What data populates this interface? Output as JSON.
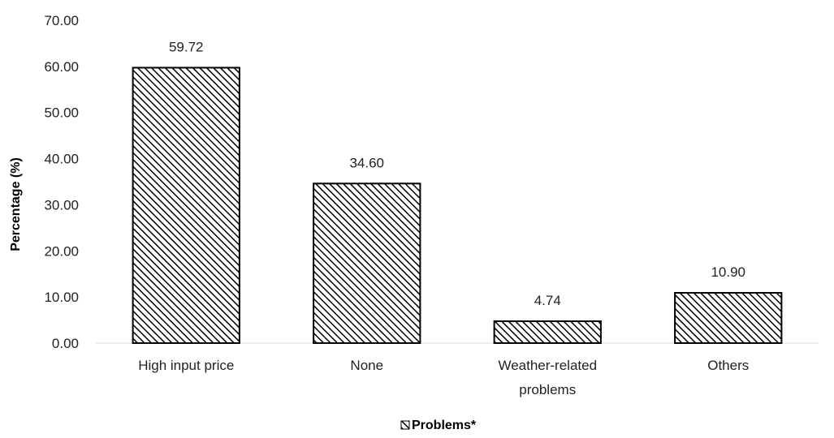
{
  "chart_data": {
    "type": "bar",
    "categories": [
      "High input price",
      "None",
      "Weather-related problems",
      "Others"
    ],
    "category_lines": [
      [
        "High input price"
      ],
      [
        "None"
      ],
      [
        "Weather-related",
        "problems"
      ],
      [
        "Others"
      ]
    ],
    "values": [
      59.72,
      34.6,
      4.74,
      10.9
    ],
    "value_labels": [
      "59.72",
      "34.60",
      "4.74",
      "10.90"
    ],
    "title": "",
    "xlabel": "",
    "ylabel": "Percentage (%)",
    "ylim": [
      0,
      70
    ],
    "yticks": [
      "0.00",
      "10.00",
      "20.00",
      "30.00",
      "40.00",
      "50.00",
      "60.00",
      "70.00"
    ],
    "grid": false,
    "legend": {
      "position": "bottom",
      "entries": [
        "Problems*"
      ]
    },
    "bar_fill": "diagonal-hatch",
    "colors": {
      "bar_stroke": "#000000",
      "hatch": "#000000",
      "axis": "#d9d9d9"
    }
  }
}
